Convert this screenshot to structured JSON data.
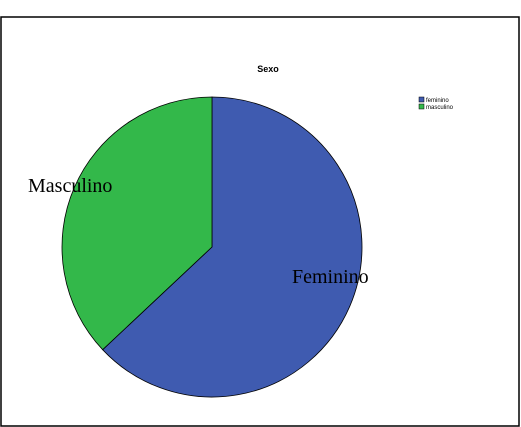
{
  "chart_data": {
    "type": "pie",
    "title": "Sexo",
    "categories": [
      "feminino",
      "masculino"
    ],
    "values": [
      63,
      37
    ],
    "colors": [
      "#3f5bb0",
      "#33b84a"
    ],
    "legend": {
      "position": "top-right",
      "entries": [
        "feminino",
        "masculino"
      ]
    },
    "slice_labels": [
      "Feminino",
      "Masculino"
    ]
  }
}
